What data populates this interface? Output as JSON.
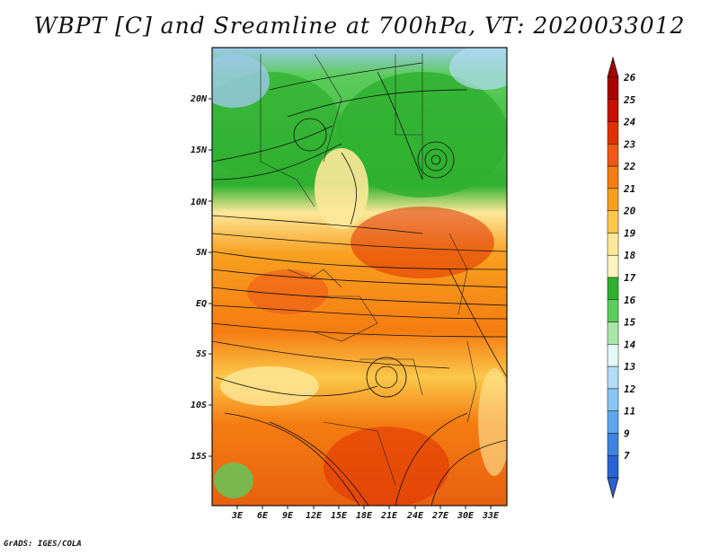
{
  "title": "WBPT [C] and Sreamline at 700hPa, VT: 2020033012",
  "credit": "GrADS: IGES/COLA",
  "lat_labels": [
    "20N",
    "15N",
    "10N",
    "5N",
    "EQ",
    "5S",
    "10S",
    "15S"
  ],
  "lon_labels": [
    "3E",
    "6E",
    "9E",
    "12E",
    "15E",
    "18E",
    "21E",
    "24E",
    "27E",
    "30E",
    "33E"
  ],
  "colorbar": {
    "labels": [
      "26",
      "25",
      "24",
      "23",
      "22",
      "21",
      "20",
      "19",
      "18",
      "17",
      "16",
      "15",
      "14",
      "13",
      "12",
      "11",
      "9",
      "7"
    ],
    "colors": [
      "#a80000",
      "#c81000",
      "#e03000",
      "#f05818",
      "#f57c10",
      "#f8a020",
      "#fbc84a",
      "#fde89a",
      "#fff4c0",
      "#2fb02f",
      "#5ccc5c",
      "#a8e6a8",
      "#e4f8f8",
      "#b4dcf6",
      "#8ac6f2",
      "#5ca6ec",
      "#3c84e0",
      "#2a64d4"
    ],
    "top_arrow_color": "#a80000",
    "bottom_arrow_color": "#2a64d4"
  }
}
